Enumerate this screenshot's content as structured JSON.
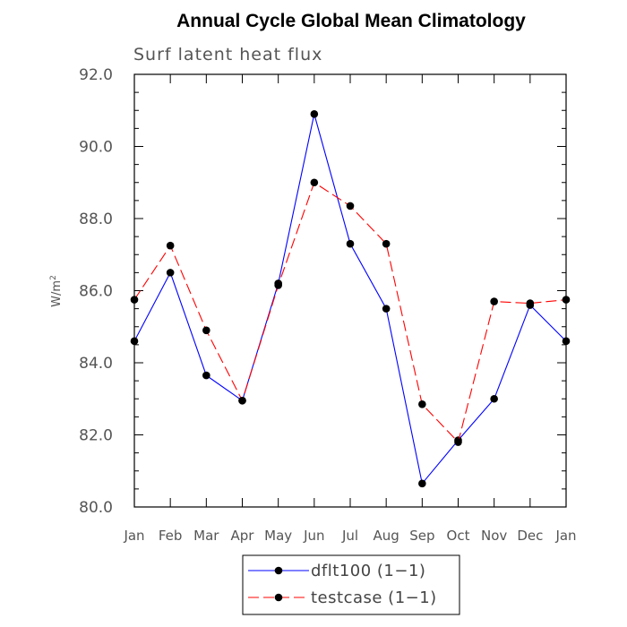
{
  "chart_data": {
    "type": "line",
    "title": "Annual Cycle Global Mean Climatology",
    "subtitle": "Surf latent heat flux",
    "xlabel": "",
    "ylabel": "W/m",
    "ylabel_superscript": "2",
    "categories": [
      "Jan",
      "Feb",
      "Mar",
      "Apr",
      "May",
      "Jun",
      "Jul",
      "Aug",
      "Sep",
      "Oct",
      "Nov",
      "Dec",
      "Jan"
    ],
    "ylim": [
      80.0,
      92.0
    ],
    "yticks": [
      "80.0",
      "82.0",
      "84.0",
      "86.0",
      "88.0",
      "90.0",
      "92.0"
    ],
    "series": [
      {
        "name": "dflt100 (1−1)",
        "color": "#0000ff",
        "dash": "solid",
        "values": [
          84.6,
          86.5,
          83.65,
          82.95,
          86.2,
          90.9,
          87.3,
          85.5,
          80.65,
          81.85,
          83.0,
          85.6,
          84.6
        ]
      },
      {
        "name": "testcase (1−1)",
        "color": "#ff0000",
        "dash": "dashed",
        "values": [
          85.75,
          87.25,
          84.9,
          82.95,
          86.15,
          89.0,
          88.35,
          87.3,
          82.85,
          81.8,
          85.7,
          85.65,
          85.75
        ]
      }
    ],
    "legend_position": "bottom-center",
    "grid": false
  }
}
